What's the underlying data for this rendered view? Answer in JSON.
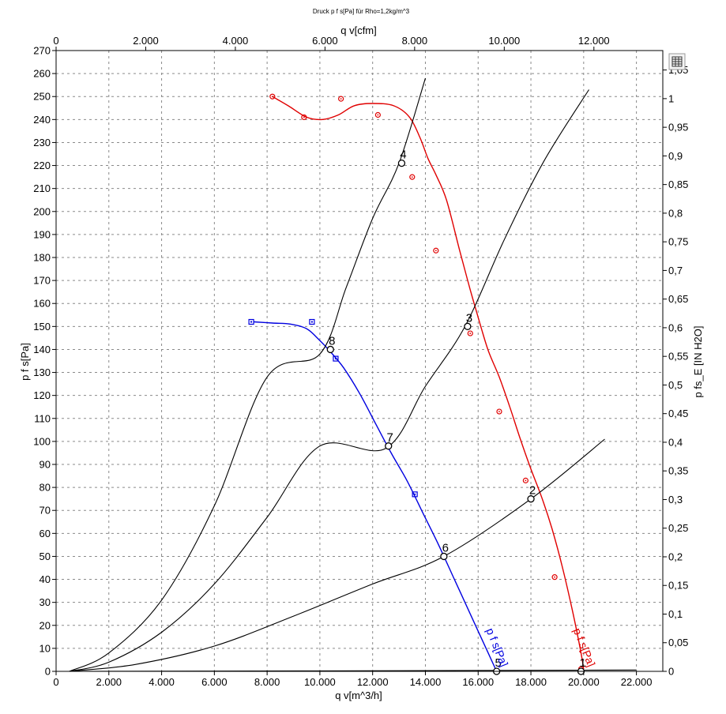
{
  "chart_data": {
    "type": "line",
    "title": "Druck p f s[Pa] für Rho=1,2kg/m^3",
    "xlabel": "q v[m^3/h]",
    "ylabel": "p f s[Pa]",
    "x2label": "q v[cfm]",
    "y2label": "p fs_E [IN H2O]",
    "xlim": [
      0,
      23000
    ],
    "ylim": [
      0,
      270
    ],
    "x_ticks": [
      0,
      2000,
      4000,
      6000,
      8000,
      10000,
      12000,
      14000,
      16000,
      18000,
      20000,
      22000
    ],
    "x_tick_labels": [
      "0",
      "2.000",
      "4.000",
      "6.000",
      "8.000",
      "10.000",
      "12.000",
      "14.000",
      "16.000",
      "18.000",
      "20.000",
      "22.000"
    ],
    "y_ticks": [
      0,
      10,
      20,
      30,
      40,
      50,
      60,
      70,
      80,
      90,
      100,
      110,
      120,
      130,
      140,
      150,
      160,
      170,
      180,
      190,
      200,
      210,
      220,
      230,
      240,
      250,
      260,
      270
    ],
    "y_tick_labels": [
      "0",
      "10",
      "20",
      "30",
      "40",
      "50",
      "60",
      "70",
      "80",
      "90",
      "100",
      "110",
      "120",
      "130",
      "140",
      "150",
      "160",
      "170",
      "180",
      "190",
      "200",
      "210",
      "220",
      "230",
      "240",
      "250",
      "260",
      "270"
    ],
    "x2_ticks": [
      0,
      2000,
      4000,
      6000,
      8000,
      10000,
      12000
    ],
    "x2_tick_labels": [
      "0",
      "2.000",
      "4.000",
      "6.000",
      "8.000",
      "10.000",
      "12.000"
    ],
    "y2_ticks": [
      0,
      0.05,
      0.1,
      0.15,
      0.2,
      0.25,
      0.3,
      0.35,
      0.4,
      0.45,
      0.5,
      0.55,
      0.6,
      0.65,
      0.7,
      0.75,
      0.8,
      0.85,
      0.9,
      0.95,
      1.0,
      1.05
    ],
    "y2_tick_labels": [
      "0",
      "0,05",
      "0,1",
      "0,15",
      "0,2",
      "0,25",
      "0,3",
      "0,35",
      "0,4",
      "0,45",
      "0,5",
      "0,55",
      "0,6",
      "0,65",
      "0,7",
      "0,75",
      "0,8",
      "0,85",
      "0,9",
      "0,95",
      "1",
      "1,05"
    ],
    "grid": true,
    "series": [
      {
        "name": "p f s[Pa]",
        "color": "#e00000",
        "marker": "circle",
        "curve": [
          [
            8200,
            250
          ],
          [
            8800,
            246
          ],
          [
            9500,
            241
          ],
          [
            10100,
            240
          ],
          [
            10700,
            242
          ],
          [
            11300,
            246
          ],
          [
            12000,
            247
          ],
          [
            12800,
            246
          ],
          [
            13400,
            241
          ],
          [
            13800,
            232
          ],
          [
            14100,
            223
          ],
          [
            14400,
            216
          ],
          [
            14800,
            205
          ],
          [
            15300,
            183
          ],
          [
            15700,
            166
          ],
          [
            16100,
            150
          ],
          [
            16400,
            139
          ],
          [
            16800,
            128
          ],
          [
            17200,
            115
          ],
          [
            17600,
            101
          ],
          [
            18000,
            88
          ],
          [
            18400,
            76
          ],
          [
            18800,
            62
          ],
          [
            19200,
            45
          ],
          [
            19600,
            25
          ],
          [
            19900,
            8
          ],
          [
            20000,
            1
          ]
        ],
        "markers": [
          [
            8200,
            250
          ],
          [
            9400,
            241
          ],
          [
            10800,
            249
          ],
          [
            12200,
            242
          ],
          [
            13500,
            215
          ],
          [
            14400,
            183
          ],
          [
            15700,
            147
          ],
          [
            16800,
            113
          ],
          [
            17800,
            83
          ],
          [
            18900,
            41
          ],
          [
            19900,
            1
          ]
        ]
      },
      {
        "name": "p f s[Pa]",
        "color": "#0000e0",
        "marker": "square",
        "curve": [
          [
            7500,
            152
          ],
          [
            8200,
            151.5
          ],
          [
            8900,
            151
          ],
          [
            9500,
            149
          ],
          [
            9900,
            145
          ],
          [
            10400,
            139
          ],
          [
            10900,
            132
          ],
          [
            11500,
            121
          ],
          [
            12100,
            108
          ],
          [
            12700,
            95
          ],
          [
            13300,
            83
          ],
          [
            13900,
            69
          ],
          [
            14500,
            55
          ],
          [
            15100,
            40
          ],
          [
            15700,
            25
          ],
          [
            16300,
            10
          ],
          [
            16700,
            0
          ]
        ],
        "markers": [
          [
            7400,
            152
          ],
          [
            9700,
            152
          ],
          [
            10600,
            136
          ],
          [
            13600,
            77
          ]
        ]
      },
      {
        "name": "",
        "color": "#000000",
        "marker": "none",
        "curve": [
          [
            500,
            0
          ],
          [
            2000,
            8
          ],
          [
            4000,
            31
          ],
          [
            6000,
            72
          ],
          [
            8000,
            128
          ],
          [
            10000,
            138
          ],
          [
            11000,
            167
          ],
          [
            12000,
            197
          ],
          [
            13000,
            221
          ],
          [
            14000,
            258
          ]
        ]
      },
      {
        "name": "",
        "color": "#000000",
        "marker": "none",
        "curve": [
          [
            500,
            0
          ],
          [
            2000,
            4
          ],
          [
            4000,
            17
          ],
          [
            6000,
            38
          ],
          [
            8000,
            67
          ],
          [
            10000,
            98
          ],
          [
            12500,
            97
          ],
          [
            14000,
            124
          ],
          [
            15500,
            150
          ],
          [
            17000,
            188
          ],
          [
            18500,
            222
          ],
          [
            20200,
            253
          ]
        ]
      },
      {
        "name": "",
        "color": "#000000",
        "marker": "none",
        "curve": [
          [
            500,
            0
          ],
          [
            3000,
            3
          ],
          [
            6000,
            11
          ],
          [
            9000,
            24
          ],
          [
            12000,
            38
          ],
          [
            14700,
            50
          ],
          [
            18000,
            75
          ],
          [
            20800,
            101
          ]
        ]
      },
      {
        "name": "",
        "color": "#000000",
        "marker": "none",
        "curve": [
          [
            500,
            0
          ],
          [
            10000,
            0.2
          ],
          [
            16700,
            0.4
          ],
          [
            20000,
            0.5
          ],
          [
            22000,
            0.6
          ]
        ]
      }
    ],
    "operating_points": [
      {
        "label": "1",
        "x": 19900,
        "y": 0
      },
      {
        "label": "2",
        "x": 18000,
        "y": 75
      },
      {
        "label": "3",
        "x": 15600,
        "y": 150
      },
      {
        "label": "4",
        "x": 13100,
        "y": 221
      },
      {
        "label": "5",
        "x": 16700,
        "y": 0
      },
      {
        "label": "6",
        "x": 14700,
        "y": 50
      },
      {
        "label": "7",
        "x": 12600,
        "y": 98
      },
      {
        "label": "8",
        "x": 10400,
        "y": 140
      }
    ],
    "curve_labels": [
      {
        "text": "p f s[Pa]",
        "color": "#0000e0",
        "x": 16300,
        "y": 18
      },
      {
        "text": "p f s[Pa]",
        "color": "#e00000",
        "x": 19600,
        "y": 18
      }
    ]
  },
  "toolbar": {
    "icon": "table-icon"
  }
}
